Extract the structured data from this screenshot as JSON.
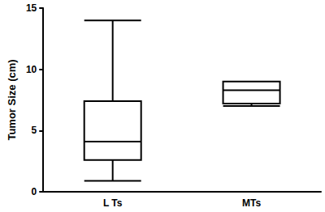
{
  "chart_data": {
    "type": "boxplot",
    "y_label": "Tumor Size (cm)",
    "categories": [
      "L Ts",
      "MTs"
    ],
    "values": [
      [
        0.9,
        2.6,
        4.1,
        7.4,
        14
      ],
      [
        7.0,
        7.2,
        8.3,
        9.0,
        9.0
      ]
    ],
    "color": "#000000",
    "ylim": [
      0,
      15
    ],
    "yticks": [
      0,
      5,
      10,
      15
    ],
    "grid": false
  }
}
